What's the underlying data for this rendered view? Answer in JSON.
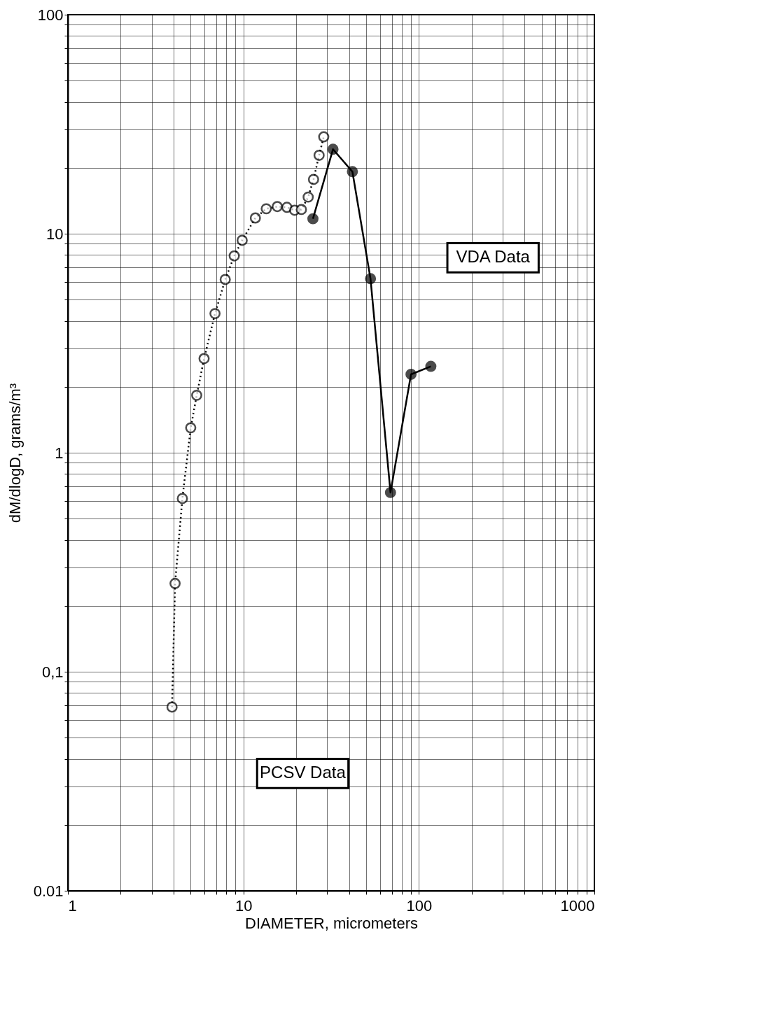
{
  "chart_data": {
    "type": "line",
    "xlabel": "DIAMETER, micrometers",
    "ylabel": "dM/dlogD, grams/m³",
    "log": "xy",
    "grid": true,
    "marker": "circle",
    "xlim": [
      1,
      1000
    ],
    "ylim": [
      0.01,
      100
    ],
    "xticks": [
      1,
      {
        "value": 2,
        "label": null
      },
      {
        "value": 3,
        "label": null
      },
      {
        "value": 4,
        "label": null
      },
      {
        "value": 5,
        "label": null
      },
      {
        "value": 6,
        "label": null
      },
      {
        "value": 7,
        "label": null
      },
      {
        "value": 8,
        "label": null
      },
      {
        "value": 9,
        "label": null
      },
      10,
      {
        "value": 20,
        "label": null
      },
      {
        "value": 30,
        "label": null
      },
      {
        "value": 40,
        "label": null
      },
      {
        "value": 50,
        "label": null
      },
      {
        "value": 60,
        "label": null
      },
      {
        "value": 70,
        "label": null
      },
      {
        "value": 80,
        "label": null
      },
      {
        "value": 90,
        "label": null
      },
      100,
      {
        "value": 200,
        "label": null
      },
      {
        "value": 300,
        "label": null
      },
      {
        "value": 400,
        "label": null
      },
      {
        "value": 500,
        "label": null
      },
      {
        "value": 600,
        "label": null
      },
      {
        "value": 700,
        "label": null
      },
      {
        "value": 800,
        "label": null
      },
      {
        "value": 900,
        "label": null
      },
      1000
    ],
    "yticks": [
      {
        "value": 0.01,
        "label": "0.01"
      },
      {
        "value": 0.02,
        "label": null
      },
      {
        "value": 0.03,
        "label": null
      },
      {
        "value": 0.04,
        "label": null
      },
      {
        "value": 0.05,
        "label": null
      },
      {
        "value": 0.06,
        "label": null
      },
      {
        "value": 0.07,
        "label": null
      },
      {
        "value": 0.08,
        "label": null
      },
      {
        "value": 0.09,
        "label": null
      },
      {
        "value": 0.1,
        "label": "0,1"
      },
      {
        "value": 0.2,
        "label": null
      },
      {
        "value": 0.3,
        "label": null
      },
      {
        "value": 0.4,
        "label": null
      },
      {
        "value": 0.5,
        "label": null
      },
      {
        "value": 0.6,
        "label": null
      },
      {
        "value": 0.7,
        "label": null
      },
      {
        "value": 0.8,
        "label": null
      },
      {
        "value": 0.9,
        "label": null
      },
      1,
      {
        "value": 2,
        "label": null
      },
      {
        "value": 3,
        "label": null
      },
      {
        "value": 4,
        "label": null
      },
      {
        "value": 5,
        "label": null
      },
      {
        "value": 6,
        "label": null
      },
      {
        "value": 7,
        "label": null
      },
      {
        "value": 8,
        "label": null
      },
      {
        "value": 9,
        "label": null
      },
      10,
      {
        "value": 20,
        "label": null
      },
      {
        "value": 30,
        "label": null
      },
      {
        "value": 40,
        "label": null
      },
      {
        "value": 50,
        "label": null
      },
      {
        "value": 60,
        "label": null
      },
      {
        "value": 70,
        "label": null
      },
      {
        "value": 80,
        "label": null
      },
      {
        "value": 90,
        "label": null
      },
      100
    ],
    "series": [
      {
        "name": "PCSV Data",
        "color": "#000000",
        "line_style": "dotted",
        "x": [
          3.92,
          4.08,
          4.49,
          5.01,
          5.42,
          5.97,
          6.89,
          7.88,
          8.87,
          9.84,
          11.7,
          13.5,
          15.6,
          17.7,
          19.6,
          21.4,
          23.4,
          25.1,
          27.0,
          28.7
        ],
        "values": [
          0.069,
          0.253,
          0.618,
          1.3,
          1.83,
          2.69,
          4.32,
          6.18,
          7.92,
          9.33,
          11.8,
          13.0,
          13.3,
          13.2,
          12.8,
          12.9,
          14.7,
          17.7,
          22.8,
          27.7
        ]
      },
      {
        "name": "VDA Data",
        "color": "#000000",
        "line_style": "solid",
        "x": [
          24.9,
          32.4,
          41.8,
          53.0,
          68.9,
          90.2,
          117
        ],
        "values": [
          11.7,
          24.3,
          19.2,
          6.23,
          0.658,
          2.28,
          2.48
        ]
      }
    ]
  }
}
